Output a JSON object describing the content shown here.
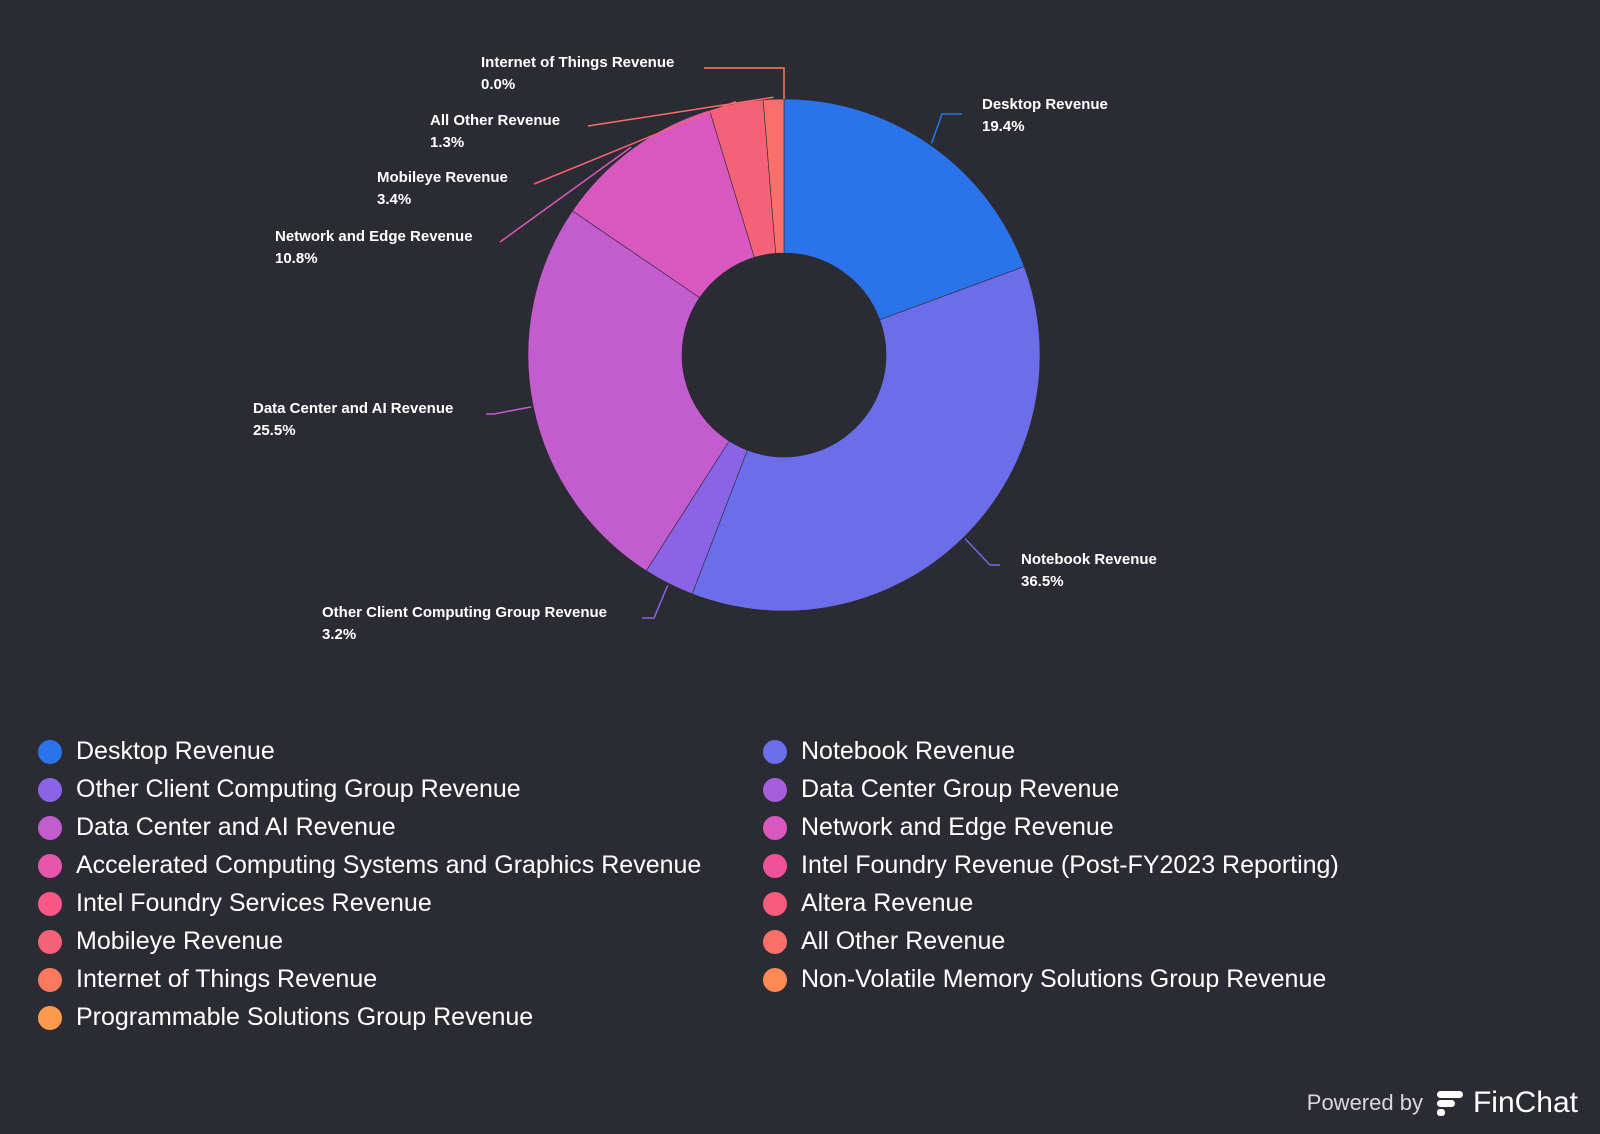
{
  "chart_data": {
    "type": "pie",
    "donut": true,
    "slices": [
      {
        "label": "Desktop Revenue",
        "value": 19.4,
        "display": "19.4%",
        "color": "#2b73ea"
      },
      {
        "label": "Notebook Revenue",
        "value": 36.5,
        "display": "36.5%",
        "color": "#6b6ee8"
      },
      {
        "label": "Other Client Computing Group Revenue",
        "value": 3.2,
        "display": "3.2%",
        "color": "#8b63e6"
      },
      {
        "label": "Data Center and AI Revenue",
        "value": 25.5,
        "display": "25.5%",
        "color": "#c25ccf"
      },
      {
        "label": "Network and Edge Revenue",
        "value": 10.8,
        "display": "10.8%",
        "color": "#d958c0"
      },
      {
        "label": "Mobileye Revenue",
        "value": 3.4,
        "display": "3.4%",
        "color": "#f56277"
      },
      {
        "label": "All Other Revenue",
        "value": 1.3,
        "display": "1.3%",
        "color": "#f96f6a"
      },
      {
        "label": "Internet of Things Revenue",
        "value": 0.0,
        "display": "0.0%",
        "color": "#fb7a5e"
      }
    ]
  },
  "legend": [
    {
      "label": "Desktop Revenue",
      "color": "#2b73ea"
    },
    {
      "label": "Notebook Revenue",
      "color": "#6b6ee8"
    },
    {
      "label": "Other Client Computing Group Revenue",
      "color": "#8b63e6"
    },
    {
      "label": "Data Center Group Revenue",
      "color": "#a85ddb"
    },
    {
      "label": "Data Center and AI Revenue",
      "color": "#c25ccf"
    },
    {
      "label": "Network and Edge Revenue",
      "color": "#d958c0"
    },
    {
      "label": "Accelerated Computing Systems and Graphics Revenue",
      "color": "#e755ad"
    },
    {
      "label": "Intel Foundry Revenue (Post-FY2023 Reporting)",
      "color": "#f0529a"
    },
    {
      "label": "Intel Foundry Services Revenue",
      "color": "#f75888"
    },
    {
      "label": "Altera Revenue",
      "color": "#f85c7c"
    },
    {
      "label": "Mobileye Revenue",
      "color": "#f56277"
    },
    {
      "label": "All Other Revenue",
      "color": "#f96f6a"
    },
    {
      "label": "Internet of Things Revenue",
      "color": "#fb7a5e"
    },
    {
      "label": "Non-Volatile Memory Solutions Group Revenue",
      "color": "#fd8a55"
    },
    {
      "label": "Programmable Solutions Group Revenue",
      "color": "#fe9a4e"
    }
  ],
  "footer": {
    "powered_by": "Powered by",
    "brand": "FinChat"
  },
  "background": "#2b2b33"
}
